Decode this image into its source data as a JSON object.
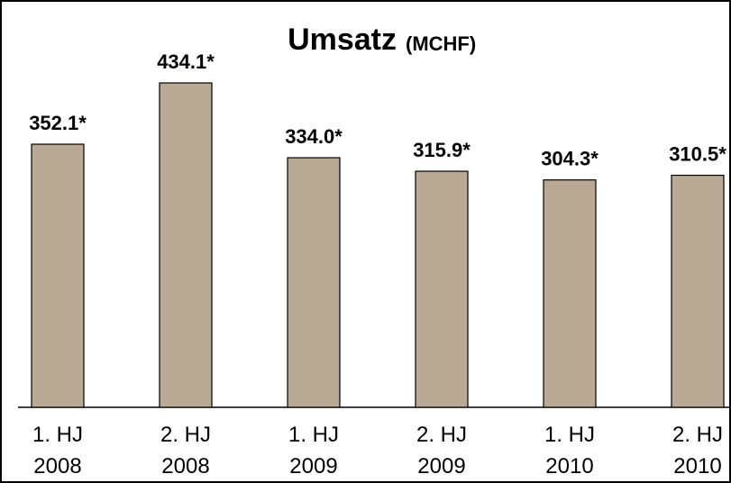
{
  "chart_data": {
    "type": "bar",
    "title": "Umsatz",
    "subtitle": "(MCHF)",
    "categories": [
      [
        "1. HJ",
        "2008"
      ],
      [
        "2. HJ",
        "2008"
      ],
      [
        "1. HJ",
        "2009"
      ],
      [
        "2. HJ",
        "2009"
      ],
      [
        "1. HJ",
        "2010"
      ],
      [
        "2. HJ",
        "2010"
      ]
    ],
    "values": [
      352.1,
      434.1,
      334.0,
      315.9,
      304.3,
      310.5
    ],
    "value_labels": [
      "352.1*",
      "434.1*",
      "334.0*",
      "315.9*",
      "304.3*",
      "310.5*"
    ],
    "color": "#b8aa94",
    "ylim": [
      0,
      533
    ]
  }
}
